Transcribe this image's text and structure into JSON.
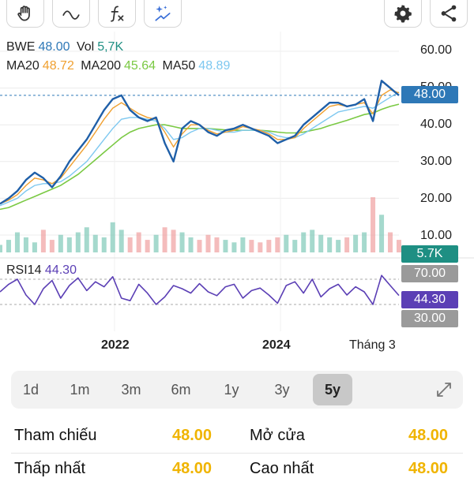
{
  "toolbar": {
    "tools": [
      {
        "icon": "hand-icon"
      },
      {
        "icon": "line-icon"
      },
      {
        "icon": "function-icon"
      },
      {
        "icon": "magic-icon"
      }
    ],
    "right": [
      {
        "icon": "gear-icon"
      },
      {
        "icon": "share-icon"
      }
    ]
  },
  "legend": {
    "symbol": "BWE",
    "price": "48.00",
    "vol_label": "Vol",
    "vol_value": "5,7K",
    "ma20_label": "MA20",
    "ma20_value": "48.72",
    "ma200_label": "MA200",
    "ma200_value": "45.64",
    "ma50_label": "MA50",
    "ma50_value": "48.89"
  },
  "rsi": {
    "label": "RSI14",
    "value": "44.30"
  },
  "colors": {
    "price_line": "#1f5fa8",
    "ma20": "#f0a030",
    "ma200": "#7ac943",
    "ma50": "#7ec8f0",
    "rsi_line": "#5b3fb5",
    "price_badge": "#2e78b7",
    "vol_badge": "#1e8f83",
    "rsi_badge": "#5b3fb5",
    "level_badge": "#9a9a9a",
    "value_text": "#f0b400"
  },
  "chart_data": {
    "type": "line",
    "x_ticks": [
      "2022",
      "2024",
      "Tháng 3"
    ],
    "y_ticks": [
      "60.00",
      "50.00",
      "40.00",
      "30.00",
      "20.00",
      "10.00"
    ],
    "ylim": [
      0,
      60
    ],
    "current_price": 48.0,
    "price_label": "48.00",
    "volume_label": "5.7K",
    "rsi_levels": [
      "70.00",
      "30.00"
    ],
    "rsi_current": "44.30",
    "price_series": [
      18.5,
      20,
      22,
      25,
      27,
      25.5,
      23,
      26,
      30,
      33,
      36,
      40,
      44,
      47,
      48,
      44,
      42,
      41,
      42,
      35,
      30,
      39,
      41,
      40,
      38,
      37,
      38.5,
      39,
      40,
      39,
      38,
      37,
      35,
      36,
      37,
      40,
      42,
      44,
      46,
      46,
      45,
      45.5,
      47,
      41,
      52,
      50,
      48
    ],
    "ma20_series": [
      18.5,
      19.5,
      21,
      23.5,
      25.5,
      25,
      24,
      25.5,
      28.5,
      31.5,
      34.5,
      38,
      41.5,
      44.5,
      46,
      44.5,
      43,
      42,
      41.5,
      38,
      34,
      37.5,
      40,
      40,
      38.5,
      37.5,
      38,
      38.5,
      39.5,
      39,
      38.5,
      37.5,
      36,
      36,
      36.5,
      39,
      41,
      43,
      45,
      45.5,
      45,
      45.5,
      46,
      43,
      48,
      49.5,
      48.7
    ],
    "ma50_series": [
      18,
      19,
      20,
      22,
      23.5,
      24,
      24,
      24.5,
      26,
      28,
      30,
      33,
      36,
      39,
      41.5,
      42,
      42,
      41.5,
      41,
      39,
      36,
      36.5,
      38,
      39,
      39,
      38.5,
      38,
      38,
      38.5,
      38.5,
      38.5,
      38,
      37,
      36.5,
      36.5,
      37.5,
      39,
      40.5,
      42,
      43.5,
      44,
      44.5,
      45,
      44.5,
      46,
      47.5,
      48.9
    ],
    "ma200_series": [
      17,
      17.5,
      18.5,
      19.5,
      20.5,
      21.5,
      22.5,
      23.5,
      25,
      26.5,
      28.5,
      30.5,
      32.5,
      34.5,
      36.5,
      38,
      39,
      39.5,
      40,
      40,
      39.5,
      39,
      39,
      39,
      39,
      38.8,
      38.6,
      38.5,
      38.5,
      38.5,
      38.5,
      38.3,
      38,
      37.8,
      37.8,
      38,
      38.5,
      39,
      39.8,
      40.5,
      41.2,
      42,
      42.8,
      43.2,
      44.2,
      45,
      45.6
    ],
    "volume_series": [
      3,
      5,
      8,
      6,
      4,
      9,
      5,
      7,
      6,
      8,
      10,
      7,
      6,
      12,
      9,
      6,
      8,
      5,
      7,
      10,
      9,
      8,
      6,
      5,
      7,
      6,
      5,
      4,
      6,
      5,
      4,
      5,
      6,
      7,
      5,
      8,
      9,
      7,
      6,
      5,
      6,
      7,
      8,
      22,
      15,
      8,
      5
    ],
    "rsi_series": [
      50,
      62,
      70,
      45,
      30,
      55,
      68,
      40,
      60,
      72,
      52,
      66,
      58,
      74,
      40,
      36,
      62,
      48,
      30,
      42,
      60,
      55,
      48,
      63,
      50,
      44,
      58,
      62,
      40,
      52,
      56,
      45,
      32,
      60,
      66,
      48,
      70,
      42,
      55,
      62,
      45,
      58,
      50,
      30,
      76,
      60,
      44.3
    ]
  },
  "ranges": [
    {
      "label": "1d"
    },
    {
      "label": "1m"
    },
    {
      "label": "3m"
    },
    {
      "label": "6m"
    },
    {
      "label": "1y"
    },
    {
      "label": "3y"
    },
    {
      "label": "5y",
      "active": true
    }
  ],
  "stats": {
    "ref_label": "Tham chiếu",
    "ref_value": "48.00",
    "open_label": "Mở cửa",
    "open_value": "48.00",
    "low_label": "Thấp nhất",
    "low_value": "48.00",
    "high_label": "Cao nhất",
    "high_value": "48.00"
  }
}
